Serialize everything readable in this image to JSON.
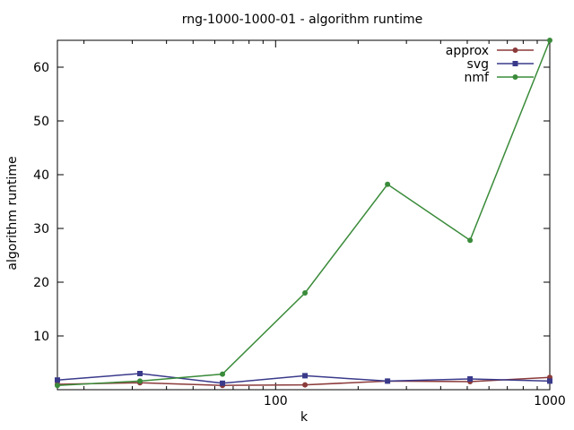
{
  "chart_data": {
    "type": "line",
    "title": "rng-1000-1000-01 - algorithm runtime",
    "xlabel": "k",
    "ylabel": "algorithm runtime",
    "x_scale": "log",
    "xlim": [
      16,
      1000
    ],
    "ylim": [
      0,
      65
    ],
    "x_ticks": [
      100,
      1000
    ],
    "x_tick_labels": [
      "100",
      "1000"
    ],
    "x_minor_ticks": [
      20,
      30,
      40,
      50,
      60,
      70,
      80,
      90,
      200,
      300,
      400,
      500,
      600,
      700,
      800,
      900
    ],
    "y_ticks": [
      10,
      20,
      30,
      40,
      50,
      60
    ],
    "y_tick_labels": [
      "10",
      "20",
      "30",
      "40",
      "50",
      "60"
    ],
    "grid": false,
    "legend_position": "top-right",
    "x": [
      16,
      32,
      64,
      128,
      256,
      512,
      1000
    ],
    "series": [
      {
        "name": "approx",
        "color": "#8b3a3a",
        "marker": "circle",
        "values": [
          1.0,
          1.3,
          0.8,
          0.9,
          1.6,
          1.5,
          2.3
        ]
      },
      {
        "name": "svg",
        "color": "#3a3a8b",
        "marker": "square",
        "values": [
          1.8,
          3.0,
          1.2,
          2.6,
          1.6,
          2.0,
          1.6
        ]
      },
      {
        "name": "nmf",
        "color": "#3a8b3a",
        "marker": "circle",
        "values": [
          0.8,
          1.6,
          2.9,
          18.0,
          38.2,
          27.8,
          65.0
        ]
      }
    ]
  }
}
